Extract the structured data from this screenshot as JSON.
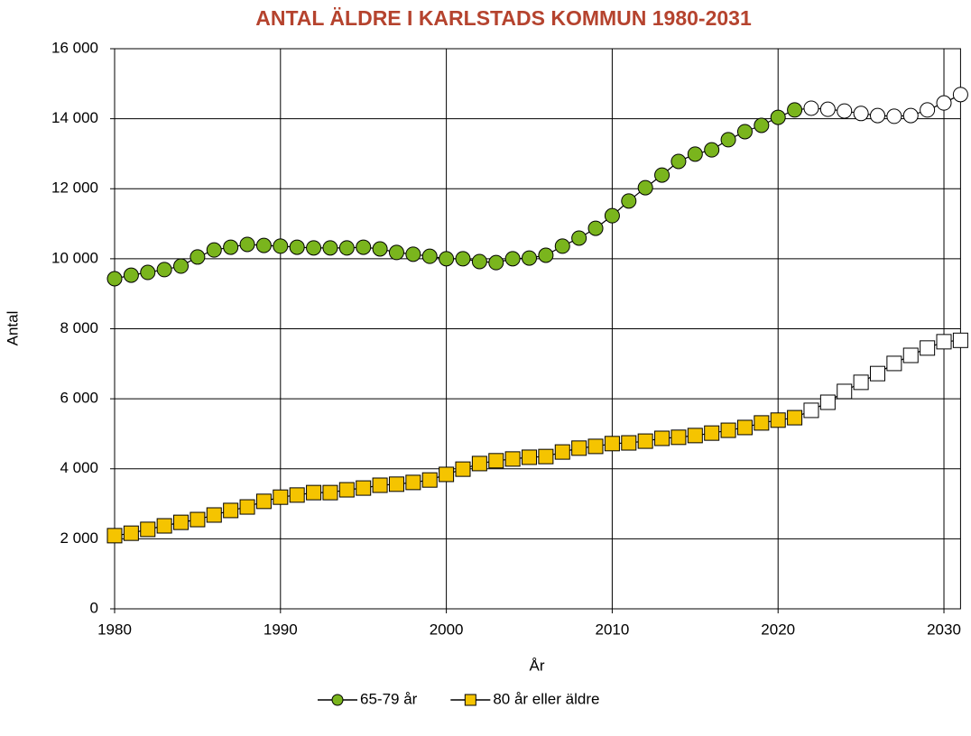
{
  "chart_data": {
    "type": "line",
    "title": "ANTAL ÄLDRE I KARLSTADS KOMMUN 1980-2031",
    "x_label": "År",
    "y_label": "Antal",
    "x": [
      1980,
      1981,
      1982,
      1983,
      1984,
      1985,
      1986,
      1987,
      1988,
      1989,
      1990,
      1991,
      1992,
      1993,
      1994,
      1995,
      1996,
      1997,
      1998,
      1999,
      2000,
      2001,
      2002,
      2003,
      2004,
      2005,
      2006,
      2007,
      2008,
      2009,
      2010,
      2011,
      2012,
      2013,
      2014,
      2015,
      2016,
      2017,
      2018,
      2019,
      2020,
      2021,
      2022,
      2023,
      2024,
      2025,
      2026,
      2027,
      2028,
      2029,
      2030,
      2031
    ],
    "series": [
      {
        "name": "65-79 år",
        "marker": "circle",
        "color": "#7ab51d",
        "forecast_color": "#ffffff",
        "values": [
          9430,
          9530,
          9610,
          9690,
          9790,
          10050,
          10250,
          10330,
          10410,
          10380,
          10360,
          10330,
          10310,
          10310,
          10310,
          10330,
          10280,
          10180,
          10130,
          10070,
          10000,
          10000,
          9920,
          9890,
          10000,
          10020,
          10100,
          10360,
          10590,
          10870,
          11230,
          11650,
          12030,
          12390,
          12780,
          12990,
          13110,
          13400,
          13630,
          13810,
          14040,
          14250,
          14300,
          14270,
          14220,
          14150,
          14090,
          14070,
          14090,
          14250,
          14450,
          14690
        ]
      },
      {
        "name": "80 år eller äldre",
        "marker": "square",
        "color": "#f5c400",
        "forecast_color": "#ffffff",
        "values": [
          2090,
          2160,
          2270,
          2370,
          2470,
          2550,
          2680,
          2810,
          2910,
          3070,
          3190,
          3250,
          3320,
          3320,
          3400,
          3450,
          3530,
          3560,
          3610,
          3680,
          3840,
          3990,
          4150,
          4230,
          4280,
          4330,
          4350,
          4480,
          4590,
          4640,
          4720,
          4740,
          4790,
          4870,
          4900,
          4950,
          5020,
          5100,
          5180,
          5310,
          5390,
          5460,
          5670,
          5900,
          6210,
          6470,
          6720,
          7010,
          7240,
          7450,
          7630,
          7670
        ]
      }
    ],
    "forecast_from": 2022,
    "xlim": [
      1980,
      2031
    ],
    "xticks": [
      1980,
      1990,
      2000,
      2010,
      2020,
      2030
    ],
    "ylim": [
      0,
      16000
    ],
    "yticks": [
      0,
      {
        "value": 2000,
        "label": "2 000"
      },
      {
        "value": 4000,
        "label": "4 000"
      },
      {
        "value": 6000,
        "label": "6 000"
      },
      {
        "value": 8000,
        "label": "8 000"
      },
      {
        "value": 10000,
        "label": "10 000"
      },
      {
        "value": 12000,
        "label": "12 000"
      },
      {
        "value": 14000,
        "label": "14 000"
      },
      {
        "value": 16000,
        "label": "16 000"
      }
    ],
    "grid": true,
    "legend": "bottom",
    "title_color": "#b5432e",
    "line_color": "#000000"
  }
}
